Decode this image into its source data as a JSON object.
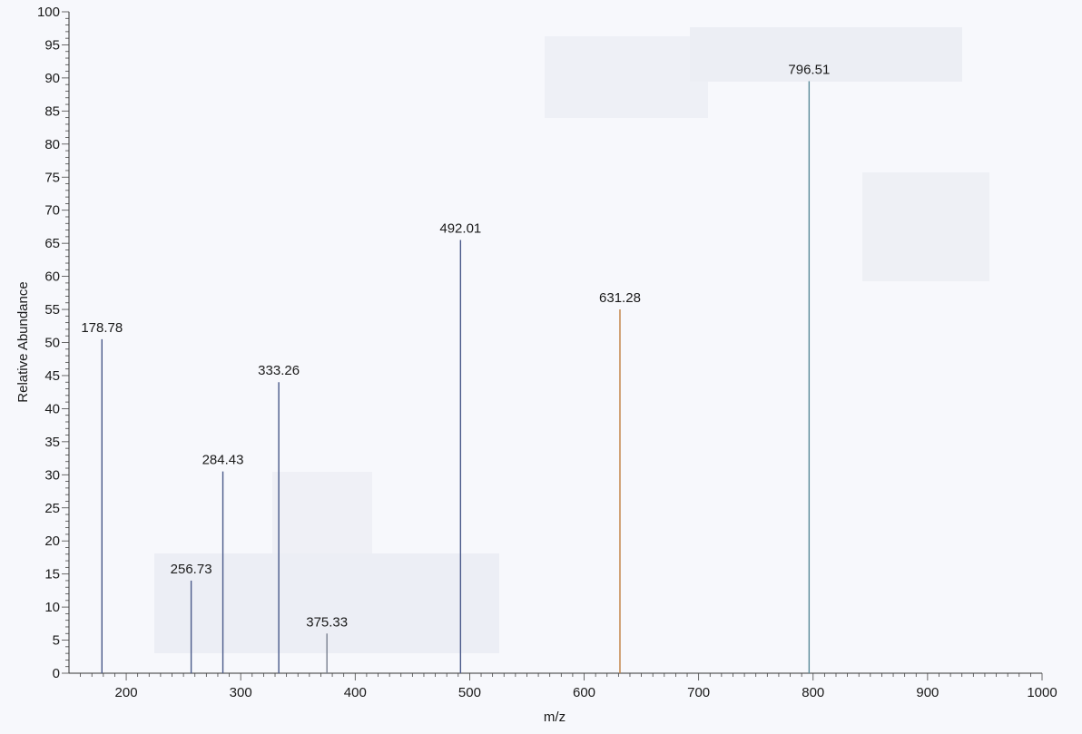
{
  "chart_data": {
    "type": "bar",
    "xlabel": "m/z",
    "ylabel": "Relative Abundance",
    "xlim": [
      150,
      1000
    ],
    "ylim": [
      0,
      100
    ],
    "x_ticks": [
      "200",
      "300",
      "400",
      "500",
      "600",
      "700",
      "800",
      "900",
      "1000"
    ],
    "y_ticks": [
      "0",
      "5",
      "10",
      "15",
      "20",
      "25",
      "30",
      "35",
      "40",
      "45",
      "50",
      "55",
      "60",
      "65",
      "70",
      "75",
      "80",
      "85",
      "90",
      "95",
      "100"
    ],
    "peaks": [
      {
        "mz": 178.78,
        "abundance": 50.5,
        "label": "178.78",
        "color": "#4a5a8a"
      },
      {
        "mz": 256.73,
        "abundance": 14.0,
        "label": "256.73",
        "color": "#4a5a8a"
      },
      {
        "mz": 284.43,
        "abundance": 30.5,
        "label": "284.43",
        "color": "#4a5a8a"
      },
      {
        "mz": 333.26,
        "abundance": 44.0,
        "label": "333.26",
        "color": "#4a5a8a"
      },
      {
        "mz": 375.33,
        "abundance": 6.0,
        "label": "375.33",
        "color": "#7a8090"
      },
      {
        "mz": 492.01,
        "abundance": 65.5,
        "label": "492.01",
        "color": "#4a5a8a"
      },
      {
        "mz": 631.28,
        "abundance": 55.0,
        "label": "631.28",
        "color": "#c08040"
      },
      {
        "mz": 796.51,
        "abundance": 89.5,
        "label": "796.51",
        "color": "#5a8a9a"
      }
    ],
    "grid": false
  }
}
